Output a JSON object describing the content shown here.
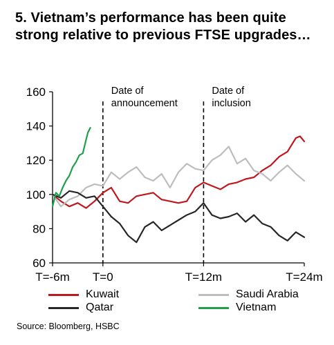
{
  "title": "5. Vietnam’s performance has been quite strong relative to previous FTSE upgrades…",
  "source": "Source: Bloomberg, HSBC",
  "chart_data": {
    "type": "line",
    "title": "5. Vietnam’s performance has been quite strong relative to previous FTSE upgrades…",
    "xlabel": "",
    "ylabel": "",
    "xlim": [
      -6,
      24
    ],
    "ylim": [
      60,
      160
    ],
    "yticks": [
      60,
      80,
      100,
      120,
      140,
      160
    ],
    "xticks": [
      {
        "value": -6,
        "label": "T=-6m"
      },
      {
        "value": 0,
        "label": "T=0"
      },
      {
        "value": 12,
        "label": "T=12m"
      },
      {
        "value": 24,
        "label": "T=24m"
      }
    ],
    "grid": false,
    "legend_position": "bottom",
    "annotations": [
      {
        "x": 0,
        "text": "Date of announcement",
        "style": "dashed-vertical-line"
      },
      {
        "x": 12,
        "text": "Date of inclusion",
        "style": "dashed-vertical-line"
      }
    ],
    "series": [
      {
        "name": "Kuwait",
        "color": "#c0171d",
        "x": [
          -6,
          -5,
          -4,
          -3,
          -2,
          -1,
          0,
          1,
          2,
          3,
          4,
          5,
          6,
          7,
          8,
          9,
          10,
          11,
          12,
          13,
          14,
          15,
          16,
          17,
          18,
          19,
          20,
          21,
          22,
          23,
          23.5,
          24
        ],
        "y": [
          100,
          96,
          93,
          95,
          92,
          96,
          101,
          104,
          96,
          95,
          99,
          100,
          101,
          97,
          96,
          95,
          96,
          104,
          107,
          105,
          103,
          106,
          107,
          109,
          110,
          114,
          117,
          122,
          125,
          133,
          134,
          131
        ]
      },
      {
        "name": "Saudi Arabia",
        "color": "#bdbdbd",
        "x": [
          -6,
          -5,
          -4,
          -3,
          -2,
          -1,
          0,
          1,
          2,
          3,
          4,
          5,
          6,
          7,
          8,
          9,
          10,
          11,
          12,
          13,
          14,
          15,
          16,
          17,
          18,
          19,
          20,
          21,
          22,
          23,
          24
        ],
        "y": [
          100,
          93,
          97,
          99,
          104,
          106,
          105,
          113,
          109,
          113,
          116,
          110,
          108,
          112,
          104,
          113,
          118,
          115,
          114,
          120,
          123,
          128,
          118,
          121,
          114,
          112,
          108,
          113,
          117,
          112,
          108
        ]
      },
      {
        "name": "Qatar",
        "color": "#262626",
        "x": [
          -6,
          -5,
          -4,
          -3,
          -2,
          -1,
          0,
          1,
          2,
          3,
          4,
          5,
          6,
          7,
          8,
          9,
          10,
          11,
          12,
          13,
          14,
          15,
          16,
          17,
          18,
          19,
          20,
          21,
          22,
          23,
          24
        ],
        "y": [
          100,
          98,
          102,
          101,
          98,
          99,
          93,
          87,
          83,
          76,
          72,
          81,
          84,
          79,
          82,
          85,
          88,
          90,
          95,
          88,
          86,
          87,
          89,
          84,
          88,
          83,
          81,
          76,
          73,
          78,
          75
        ]
      },
      {
        "name": "Vietnam",
        "color": "#1f9f4a",
        "x": [
          -6,
          -5.6,
          -5.2,
          -4.8,
          -4.4,
          -4,
          -3.6,
          -3.2,
          -2.8,
          -2.4,
          -2,
          -1.8,
          -1.5
        ],
        "y": [
          93,
          101,
          99,
          104,
          108,
          111,
          116,
          119,
          123,
          124,
          132,
          136,
          139
        ]
      }
    ]
  }
}
